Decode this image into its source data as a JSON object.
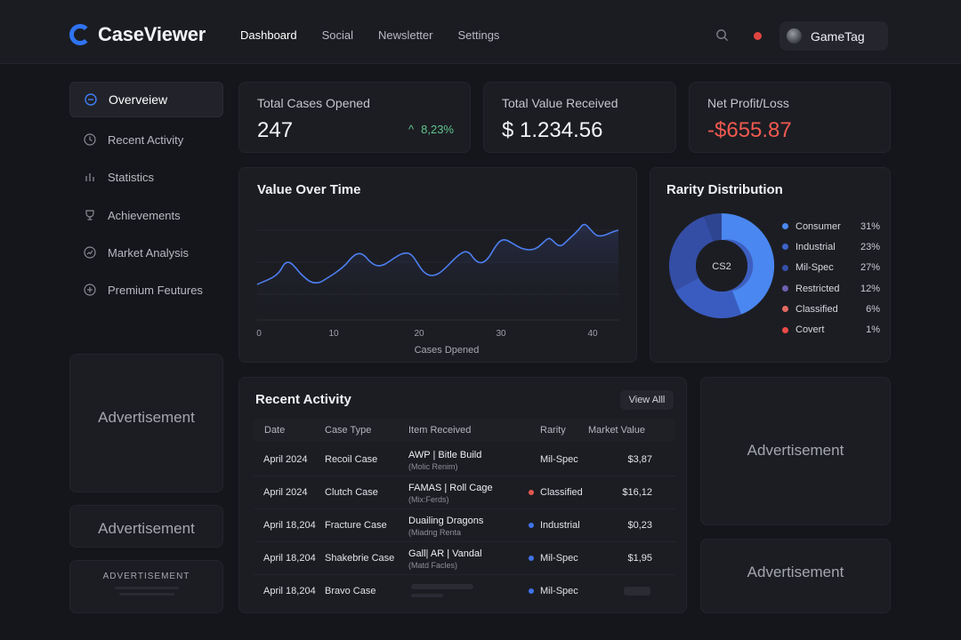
{
  "app": {
    "name": "CaseViewer"
  },
  "nav": [
    "Dashboard",
    "Social",
    "Newsletter",
    "Settings"
  ],
  "user": {
    "name": "GameTag"
  },
  "sidebar": {
    "items": [
      {
        "label": "Overveiew",
        "icon": "minus-circle-icon",
        "active": true
      },
      {
        "label": "Recent Activity",
        "icon": "clock-icon"
      },
      {
        "label": "Statistics",
        "icon": "bar-chart-icon"
      },
      {
        "label": "Achievements",
        "icon": "trophy-icon"
      },
      {
        "label": "Market Analysis",
        "icon": "chart-circle-icon"
      },
      {
        "label": "Premium Feutures",
        "icon": "plus-circle-icon"
      }
    ]
  },
  "ads": {
    "left_large": "Advertisement",
    "left_small": "Advertisement",
    "left_banner": "ADVERTISEMENT",
    "right_large": "Advertisement",
    "right_small": "Advertisement"
  },
  "stats": {
    "cases": {
      "label": "Total Cases Opened",
      "value": "247",
      "delta": "8,23%"
    },
    "value": {
      "label": "Total Value Received",
      "value": "$ 1.234.56"
    },
    "profit": {
      "label": "Net Profit/Loss",
      "value": "-$655.87"
    }
  },
  "value_chart": {
    "title": "Value Over Time",
    "xlabel": "Cases Dpened",
    "ticks": [
      "0",
      "10",
      "20",
      "30",
      "40"
    ]
  },
  "rarity": {
    "title": "Rarity Distribution",
    "center_label": "CS2",
    "items": [
      {
        "name": "Consumer",
        "pct": "31%",
        "color": "#4a87f0"
      },
      {
        "name": "Industrial",
        "pct": "23%",
        "color": "#3e63c9"
      },
      {
        "name": "Mil-Spec",
        "pct": "27%",
        "color": "#3650aa"
      },
      {
        "name": "Restricted",
        "pct": "12%",
        "color": "#6f5fb0"
      },
      {
        "name": "Classified",
        "pct": "6%",
        "color": "#e46a60"
      },
      {
        "name": "Covert",
        "pct": "1%",
        "color": "#ee4a48"
      }
    ]
  },
  "activity": {
    "title": "Recent Activity",
    "view_all": "View Alll",
    "columns": [
      "Date",
      "Case Type",
      "Item Received",
      "Rarity",
      "Market Value"
    ],
    "rows": [
      {
        "date": "April 2024",
        "case": "Recoil Case",
        "item": "AWP | Bitle Build",
        "sub": "(Molic Renim)",
        "rarity": "Mil-Spec",
        "dot": "",
        "value": "$3,87"
      },
      {
        "date": "April 2024",
        "case": "Clutch Case",
        "item": "FAMAS | Roll Cage",
        "sub": "(Mix:Ferds)",
        "rarity": "Classified",
        "dot": "#e4574f",
        "value": "$16,12"
      },
      {
        "date": "April 18,204",
        "case": "Fracture Case",
        "item": "Duailing Dragons",
        "sub": "(Miadng Renta",
        "rarity": "Industrial",
        "dot": "#3f73e8",
        "value": "$0,23"
      },
      {
        "date": "April 18,204",
        "case": "Shakebrie Case",
        "item": "Gall| AR | Vandal",
        "sub": "(Matd Facles)",
        "rarity": "Mil-Spec",
        "dot": "#3f73e8",
        "value": "$1,95"
      },
      {
        "date": "April 18,204",
        "case": "Bravo Case",
        "item": "",
        "sub": "",
        "rarity": "Mil-Spec",
        "dot": "#3f73e8",
        "value": ""
      }
    ]
  }
}
